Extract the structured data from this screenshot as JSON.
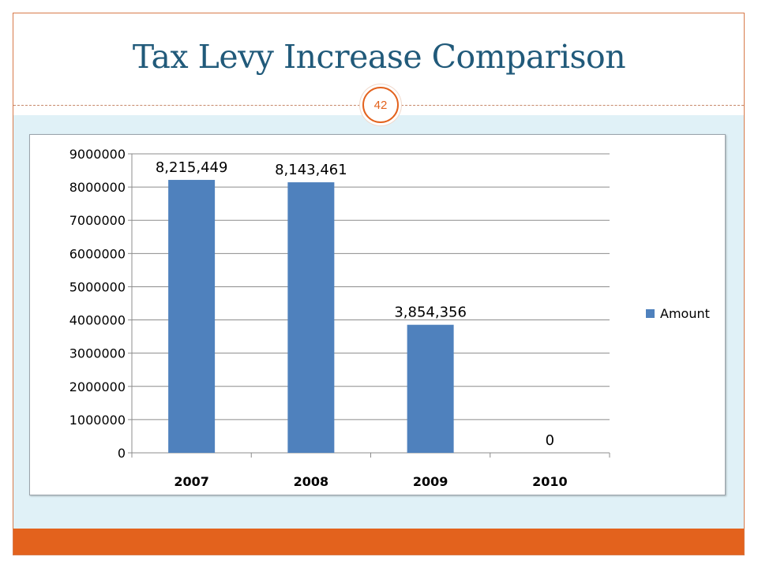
{
  "slide": {
    "title": "Tax Levy Increase Comparison",
    "page_number": "42"
  },
  "colors": {
    "title": "#215a7a",
    "accent": "#e3621d",
    "band": "#e0f1f7",
    "bar": "#4f81bd"
  },
  "chart_data": {
    "type": "bar",
    "categories": [
      "2007",
      "2008",
      "2009",
      "2010"
    ],
    "series": [
      {
        "name": "Amount",
        "values": [
          8215449,
          8143461,
          3854356,
          0
        ],
        "data_labels": [
          "8,215,449",
          "8,143,461",
          "3,854,356",
          "0"
        ]
      }
    ],
    "ylim": [
      0,
      9000000
    ],
    "yticks": [
      "0",
      "1000000",
      "2000000",
      "3000000",
      "4000000",
      "5000000",
      "6000000",
      "7000000",
      "8000000",
      "9000000"
    ],
    "grid": true,
    "legend": "right"
  }
}
